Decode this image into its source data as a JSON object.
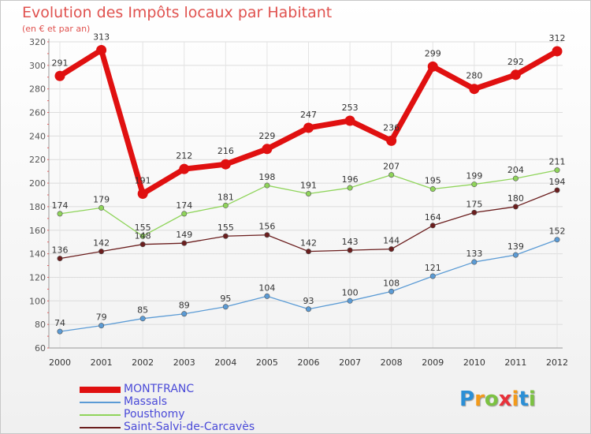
{
  "header": {
    "title": "Evolution des Impôts locaux par Habitant",
    "subtitle": "(en € et par an)"
  },
  "logo": {
    "letters": [
      "P",
      "r",
      "o",
      "x",
      "i",
      "t",
      "i"
    ],
    "colors": [
      "#2b8fd6",
      "#f39a1a",
      "#7cc242",
      "#e8313a",
      "#f39a1a",
      "#2b8fd6",
      "#7cc242"
    ]
  },
  "colors": {
    "title": "#e0524f",
    "axis_labels": "#555555",
    "legend_text": "#4a4ad8"
  },
  "chart_data": {
    "type": "line",
    "title": "Evolution des Impôts locaux par Habitant",
    "subtitle": "(en € et par an)",
    "x": [
      "2000",
      "2001",
      "2002",
      "2003",
      "2004",
      "2005",
      "2006",
      "2007",
      "2008",
      "2009",
      "2010",
      "2011",
      "2012"
    ],
    "ylim": [
      60,
      320
    ],
    "yticks": [
      60,
      80,
      100,
      120,
      140,
      160,
      180,
      200,
      220,
      240,
      260,
      280,
      300,
      320
    ],
    "grid": true,
    "legend_position": "bottom-left",
    "series": [
      {
        "name": "MONTFRANC",
        "color": "#e01010",
        "values": [
          291,
          313,
          191,
          212,
          216,
          229,
          247,
          253,
          236,
          299,
          280,
          292,
          312
        ]
      },
      {
        "name": "Massals",
        "color": "#5b9bd5",
        "values": [
          74,
          79,
          85,
          89,
          95,
          104,
          93,
          100,
          108,
          121,
          133,
          139,
          152
        ]
      },
      {
        "name": "Pousthomy",
        "color": "#8fd45a",
        "values": [
          174,
          179,
          155,
          174,
          181,
          198,
          191,
          196,
          207,
          195,
          199,
          204,
          211
        ]
      },
      {
        "name": "Saint-Salvi-de-Carcavès",
        "color": "#6b1e1e",
        "values": [
          136,
          142,
          148,
          149,
          155,
          156,
          142,
          143,
          144,
          164,
          175,
          180,
          194
        ]
      }
    ]
  }
}
